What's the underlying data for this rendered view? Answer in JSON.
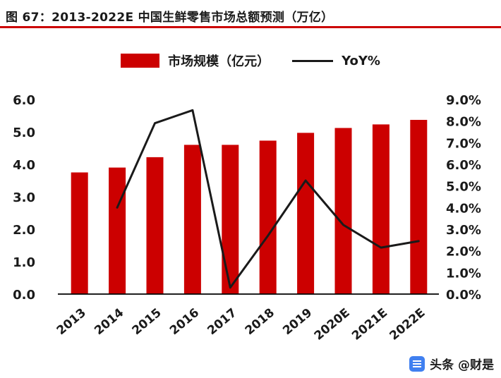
{
  "header": {
    "title": "图 67：2013-2022E 中国生鲜零售市场总额预测（万亿）"
  },
  "legend": {
    "bar_label": "市场规模（亿元）",
    "line_label": "YoY%"
  },
  "colors": {
    "accent_red": "#cc0000",
    "bar_red": "#cc0000",
    "line_black": "#1a1a1a",
    "watermark_blue": "#4080f0"
  },
  "chart_data": {
    "type": "bar+line",
    "title": "图 67：2013-2022E 中国生鲜零售市场总额预测（万亿）",
    "categories": [
      "2013",
      "2014",
      "2015",
      "2016",
      "2017",
      "2018",
      "2019",
      "2020E",
      "2021E",
      "2022E"
    ],
    "series": [
      {
        "name": "市场规模（亿元）",
        "type": "bar",
        "axis": "left",
        "color": "#cc0000",
        "values": [
          3.75,
          3.9,
          4.22,
          4.6,
          4.6,
          4.73,
          4.97,
          5.12,
          5.23,
          5.37
        ]
      },
      {
        "name": "YoY%",
        "type": "line",
        "axis": "right",
        "color": "#1a1a1a",
        "values": [
          null,
          4.0,
          7.9,
          8.5,
          0.3,
          2.7,
          5.25,
          3.2,
          2.15,
          2.45
        ]
      }
    ],
    "left_axis": {
      "min": 0,
      "max": 6,
      "step": 1,
      "tick_labels": [
        "0.0",
        "1.0",
        "2.0",
        "3.0",
        "4.0",
        "5.0",
        "6.0"
      ]
    },
    "right_axis": {
      "min": 0,
      "max": 9,
      "step": 1,
      "tick_labels": [
        "0.0%",
        "1.0%",
        "2.0%",
        "3.0%",
        "4.0%",
        "5.0%",
        "6.0%",
        "7.0%",
        "8.0%",
        "9.0%"
      ]
    },
    "grid": false,
    "legend_position": "top-center"
  },
  "watermark": {
    "text": "头条 @财是"
  }
}
